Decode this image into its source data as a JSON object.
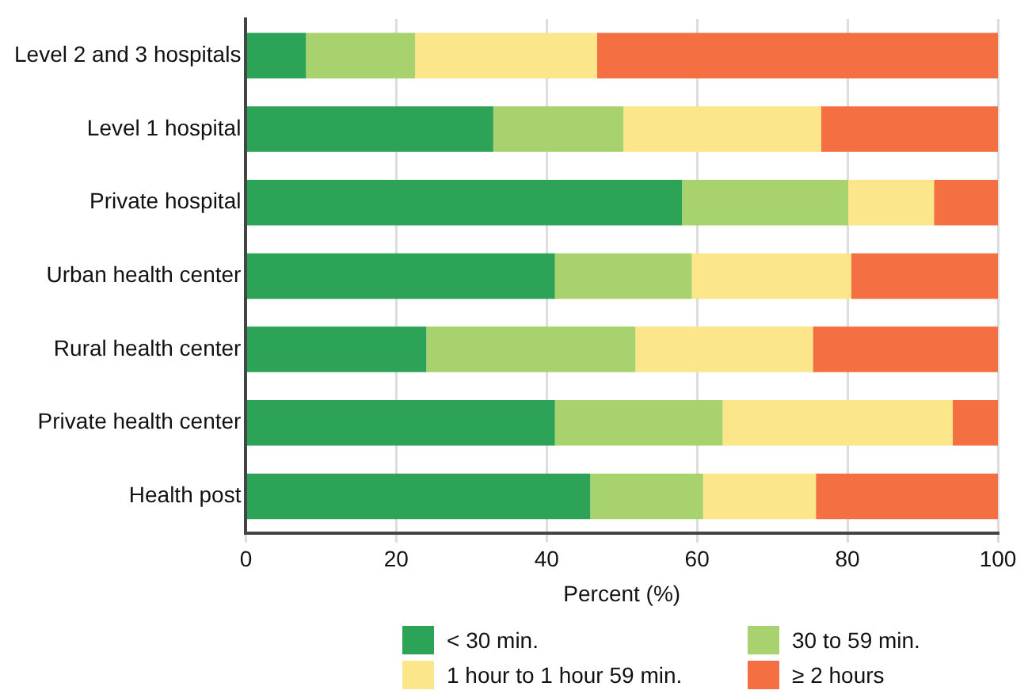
{
  "chart_data": {
    "type": "bar",
    "orientation": "horizontal",
    "stacked": true,
    "categories": [
      "Level 2 and 3 hospitals",
      "Level 1 hospital",
      "Private hospital",
      "Urban health center",
      "Rural health center",
      "Private health center",
      "Health post"
    ],
    "series": [
      {
        "name": "< 30 min.",
        "color": "#2ca357",
        "values": [
          8.0,
          32.9,
          58.0,
          41.1,
          24.0,
          41.1,
          45.8
        ]
      },
      {
        "name": "30 to 59 min.",
        "color": "#a8d26e",
        "values": [
          14.5,
          17.3,
          22.1,
          18.2,
          27.8,
          22.3,
          15.0
        ]
      },
      {
        "name": "1 hour to 1 hour 59 min.",
        "color": "#fbe68a",
        "values": [
          24.2,
          26.3,
          11.4,
          21.2,
          23.6,
          30.6,
          15.0
        ]
      },
      {
        "name": "≥ 2 hours",
        "color": "#f46f42",
        "values": [
          53.3,
          23.5,
          8.5,
          19.5,
          24.6,
          6.0,
          24.2
        ]
      }
    ],
    "xlabel": "Percent (%)",
    "xlim": [
      0,
      100
    ],
    "xticks": [
      0,
      20,
      40,
      60,
      80,
      100
    ],
    "grid": "x",
    "legend": "bottom"
  }
}
